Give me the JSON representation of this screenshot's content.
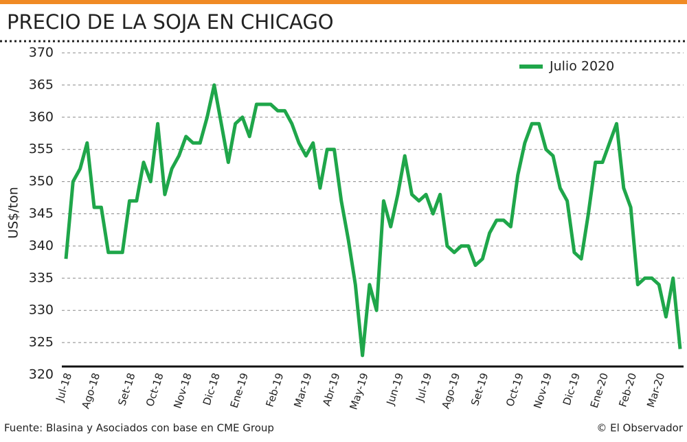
{
  "chart_data": {
    "type": "line",
    "title": "PRECIO DE LA SOJA EN CHICAGO",
    "y_label": "US$/ton",
    "source": "Fuente: Blasina y Asociados con base en CME Group",
    "credit": "© El Observador",
    "categories": [
      "Jul-18",
      null,
      null,
      null,
      "Ago-18",
      null,
      null,
      null,
      null,
      "Set-18",
      null,
      null,
      null,
      "Oct-18",
      null,
      null,
      null,
      "Nov-18",
      null,
      null,
      null,
      "Dic-18",
      null,
      null,
      null,
      "Ene-19",
      null,
      null,
      null,
      null,
      "Feb-19",
      null,
      null,
      null,
      "Mar-19",
      null,
      null,
      null,
      "Abr-19",
      null,
      null,
      null,
      "May-19",
      null,
      null,
      null,
      null,
      "Jun-19",
      null,
      null,
      null,
      "Jul-19",
      null,
      null,
      null,
      "Ago-19",
      null,
      null,
      null,
      "Set-19",
      null,
      null,
      null,
      null,
      "Oct-19",
      null,
      null,
      null,
      "Nov-19",
      null,
      null,
      null,
      "Dic-19",
      null,
      null,
      null,
      "Ene-20",
      null,
      null,
      null,
      "Feb-20",
      null,
      null,
      null,
      "Mar-20",
      null,
      null,
      null
    ],
    "series": [
      {
        "name": "Julio 2020",
        "color": "#1fa64a",
        "values": [
          338,
          350,
          352,
          356,
          346,
          346,
          339,
          339,
          339,
          347,
          347,
          353,
          350,
          359,
          348,
          352,
          354,
          357,
          356,
          356,
          360,
          365,
          359,
          353,
          359,
          360,
          357,
          362,
          362,
          362,
          361,
          361,
          359,
          356,
          354,
          356,
          349,
          355,
          355,
          347,
          341,
          334,
          323,
          334,
          330,
          347,
          343,
          348,
          354,
          348,
          347,
          348,
          345,
          348,
          340,
          339,
          340,
          340,
          337,
          338,
          342,
          344,
          344,
          343,
          351,
          356,
          359,
          359,
          355,
          354,
          349,
          347,
          339,
          338,
          345,
          353,
          353,
          356,
          359,
          349,
          346,
          334,
          335,
          335,
          334,
          329,
          335,
          324
        ]
      }
    ],
    "ylim": [
      320,
      370
    ],
    "yticks": [
      320,
      325,
      330,
      335,
      340,
      345,
      350,
      355,
      360,
      365,
      370
    ],
    "grid": true,
    "legend": "top-right"
  }
}
